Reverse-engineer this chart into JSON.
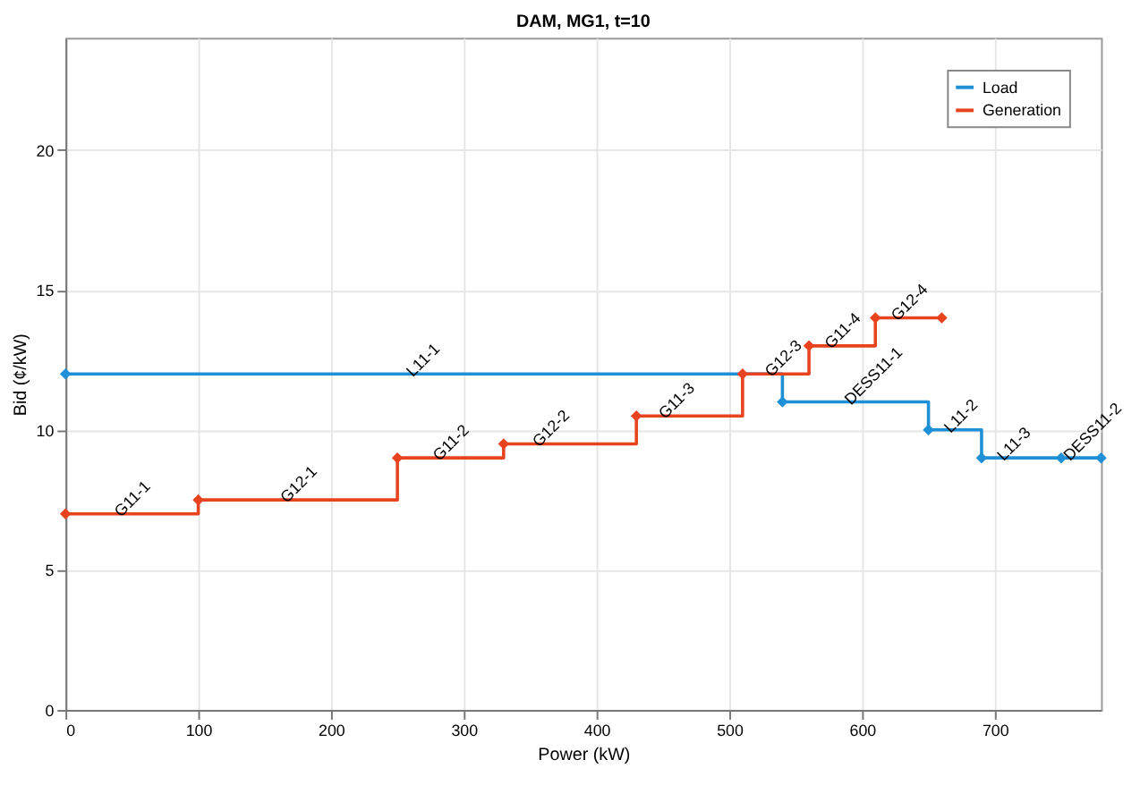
{
  "chart_data": {
    "type": "step",
    "title": "DAM, MG1, t=10",
    "xlabel": "Power (kW)",
    "ylabel": "Bid (¢/kW)",
    "xlim": [
      0,
      780
    ],
    "ylim": [
      0,
      24
    ],
    "xticks": [
      0,
      100,
      200,
      300,
      400,
      500,
      600,
      700
    ],
    "yticks": [
      0,
      5,
      10,
      15,
      20
    ],
    "grid": true,
    "legend": "top right",
    "marker": "diamond",
    "line_style": "solid",
    "series": [
      {
        "name": "Load",
        "color": "#1f8fd6",
        "x": [
          0,
          540,
          650,
          690,
          750,
          780
        ],
        "values": [
          12,
          11,
          10,
          9,
          9,
          9
        ]
      },
      {
        "name": "Generation",
        "color": "#e8431f",
        "x": [
          0,
          100,
          250,
          330,
          430,
          510,
          560,
          610,
          660
        ],
        "values": [
          7,
          7.5,
          9,
          9.5,
          10.5,
          12,
          13,
          14,
          14
        ]
      }
    ],
    "annotations": [
      {
        "text": "L11-1",
        "x": 255,
        "y": 12
      },
      {
        "text": "G11-1",
        "x": 35,
        "y": 7
      },
      {
        "text": "G12-1",
        "x": 160,
        "y": 7.5
      },
      {
        "text": "G11-2",
        "x": 275,
        "y": 9
      },
      {
        "text": "G12-2",
        "x": 350,
        "y": 9.5
      },
      {
        "text": "G11-3",
        "x": 445,
        "y": 10.5
      },
      {
        "text": "G12-3",
        "x": 525,
        "y": 12
      },
      {
        "text": "G11-4",
        "x": 570,
        "y": 13
      },
      {
        "text": "G12-4",
        "x": 620,
        "y": 14
      },
      {
        "text": "DESS11-1",
        "x": 585,
        "y": 11
      },
      {
        "text": "L11-2",
        "x": 660,
        "y": 10
      },
      {
        "text": "L11-3",
        "x": 700,
        "y": 9
      },
      {
        "text": "DESS11-2",
        "x": 750,
        "y": 9
      }
    ]
  }
}
